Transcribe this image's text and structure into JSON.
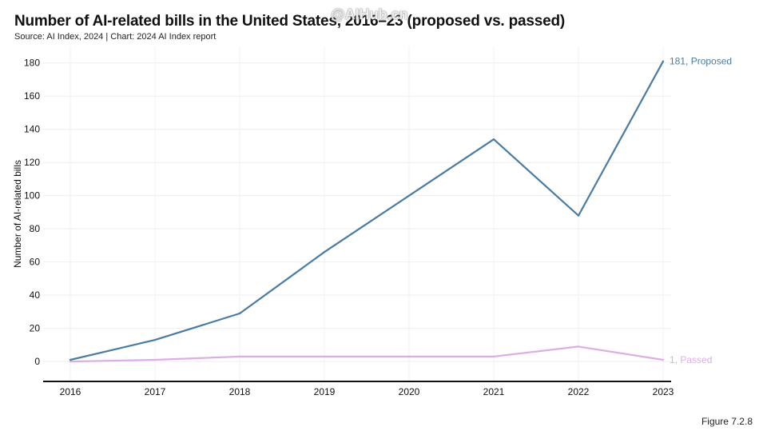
{
  "header": {
    "title": "Number of AI-related bills in the United States, 2016–23 (proposed vs. passed)",
    "subtitle": "Source: AI Index, 2024 | Chart: 2024 AI Index report",
    "watermark": "@AIHub.cn"
  },
  "footer": {
    "figure": "Figure 7.2.8"
  },
  "chart_data": {
    "type": "line",
    "title": "Number of AI-related bills in the United States, 2016–23 (proposed vs. passed)",
    "xlabel": "",
    "ylabel": "Number of AI-related bills",
    "x": [
      2016,
      2017,
      2018,
      2019,
      2020,
      2021,
      2022,
      2023
    ],
    "ylim": [
      -12,
      190
    ],
    "yticks": [
      0,
      20,
      40,
      60,
      80,
      100,
      120,
      140,
      160,
      180
    ],
    "grid": true,
    "series": [
      {
        "name": "Proposed",
        "color": "#4a7ca3",
        "values": [
          1,
          13,
          29,
          66,
          100,
          134,
          88,
          181
        ],
        "end_label": "181, Proposed"
      },
      {
        "name": "Passed",
        "color": "#dcaee6",
        "values": [
          0,
          1,
          3,
          3,
          3,
          3,
          9,
          1
        ],
        "end_label": "1, Passed"
      }
    ]
  }
}
